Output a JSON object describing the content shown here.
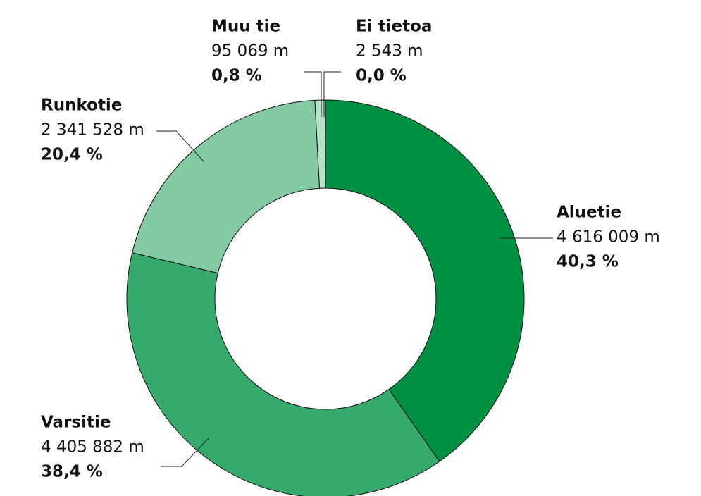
{
  "chart_data": {
    "type": "donut",
    "categories": [
      "Aluetie",
      "Varsitie",
      "Runkotie",
      "Muu tie",
      "Ei tietoa"
    ],
    "values": [
      4616009,
      4405882,
      2341528,
      95069,
      2543
    ],
    "value_labels": [
      "4 616 009 m",
      "4 405 882 m",
      "2 341 528 m",
      "95 069 m",
      "2 543 m"
    ],
    "percentages": [
      40.3,
      38.4,
      20.4,
      0.8,
      0.0
    ],
    "percentage_labels": [
      "40,3 %",
      "38,4 %",
      "20,4 %",
      "0,8 %",
      "0,0 %"
    ],
    "colors": [
      "#009043",
      "#35aa6c",
      "#83c9a2",
      "#b7e1c9",
      "#e6f4ec"
    ]
  }
}
